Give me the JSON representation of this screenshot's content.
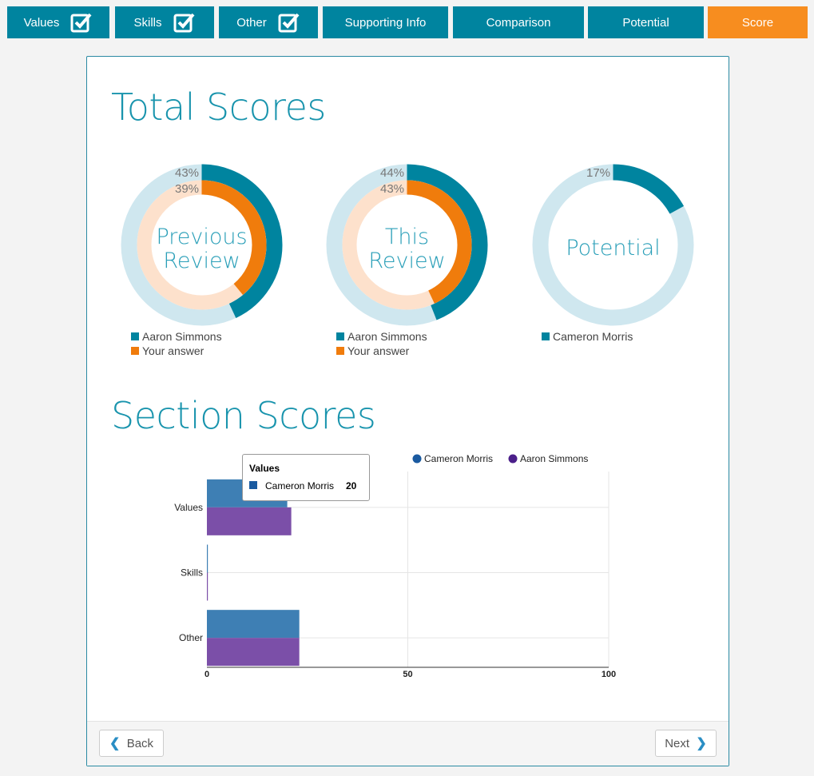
{
  "tabs": [
    {
      "label": "Values",
      "checked": true
    },
    {
      "label": "Skills",
      "checked": true
    },
    {
      "label": "Other",
      "checked": true
    },
    {
      "label": "Supporting Info",
      "checked": false
    },
    {
      "label": "Comparison",
      "checked": false
    },
    {
      "label": "Potential",
      "checked": false
    },
    {
      "label": "Score",
      "checked": false,
      "active": true
    }
  ],
  "total_scores": {
    "title": "Total Scores",
    "previous": {
      "label_line1": "Previous",
      "label_line2": "Review",
      "outer_pct": "43%",
      "inner_pct": "39%",
      "outer_value": 43,
      "inner_value": 39,
      "legend": [
        "Aaron Simmons",
        "Your answer"
      ]
    },
    "this": {
      "label_line1": "This",
      "label_line2": "Review",
      "outer_pct": "44%",
      "inner_pct": "43%",
      "outer_value": 44,
      "inner_value": 43,
      "legend": [
        "Aaron Simmons",
        "Your answer"
      ]
    },
    "potential": {
      "label": "Potential",
      "pct": "17%",
      "value": 17,
      "legend": [
        "Cameron Morris"
      ]
    }
  },
  "section_scores": {
    "title": "Section Scores"
  },
  "colors": {
    "teal": "#00849f",
    "teal_light": "#cfe7ef",
    "orange": "#f07c0c",
    "orange_light": "#fde1cc",
    "blue": "#3e7fb4",
    "purple": "#7b4fa8",
    "active_tab": "#f78d1f"
  },
  "chart_data": {
    "type": "bar",
    "orientation": "horizontal",
    "categories": [
      "Values",
      "Skills",
      "Other"
    ],
    "series": [
      {
        "name": "Cameron Morris",
        "values": [
          20,
          0,
          23
        ]
      },
      {
        "name": "Aaron Simmons",
        "values": [
          21,
          0,
          23
        ]
      }
    ],
    "xlim": [
      0,
      100
    ],
    "xticks": [
      "0",
      "50",
      "100"
    ],
    "legend_position": "top-right",
    "tooltip": {
      "title": "Values",
      "series": "Cameron Morris",
      "value": "20"
    }
  },
  "footer": {
    "back": "Back",
    "next": "Next"
  }
}
